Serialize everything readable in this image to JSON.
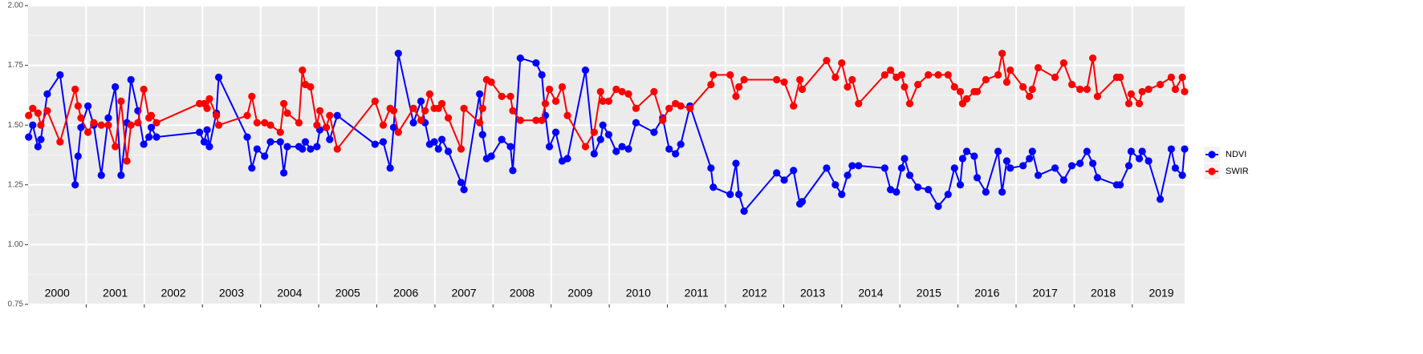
{
  "chart_data": {
    "type": "line",
    "x": [
      2000.01,
      2000.08,
      2000.17,
      2000.22,
      2000.33,
      2000.55,
      2000.81,
      2000.86,
      2000.91,
      2001.03,
      2001.13,
      2001.26,
      2001.38,
      2001.5,
      2001.6,
      2001.7,
      2001.77,
      2001.89,
      2001.99,
      2002.08,
      2002.12,
      2002.21,
      2002.95,
      2003.03,
      2003.08,
      2003.12,
      2003.24,
      2003.28,
      2003.77,
      2003.85,
      2003.94,
      2004.07,
      2004.17,
      2004.34,
      2004.4,
      2004.46,
      2004.66,
      2004.72,
      2004.77,
      2004.86,
      2004.97,
      2005.02,
      2005.13,
      2005.19,
      2005.32,
      2005.97,
      2006.11,
      2006.23,
      2006.29,
      2006.37,
      2006.63,
      2006.76,
      2006.83,
      2006.91,
      2006.99,
      2007.06,
      2007.12,
      2007.23,
      2007.45,
      2007.5,
      2007.77,
      2007.82,
      2007.89,
      2007.97,
      2008.15,
      2008.3,
      2008.34,
      2008.47,
      2008.74,
      2008.84,
      2008.9,
      2008.97,
      2009.08,
      2009.19,
      2009.28,
      2009.59,
      2009.74,
      2009.85,
      2009.89,
      2009.99,
      2010.12,
      2010.22,
      2010.33,
      2010.46,
      2010.77,
      2010.92,
      2011.03,
      2011.14,
      2011.23,
      2011.39,
      2011.75,
      2011.79,
      2012.08,
      2012.18,
      2012.23,
      2012.32,
      2012.88,
      2013.01,
      2013.17,
      2013.28,
      2013.32,
      2013.74,
      2013.89,
      2014.0,
      2014.1,
      2014.18,
      2014.29,
      2014.74,
      2014.84,
      2014.94,
      2015.03,
      2015.08,
      2015.17,
      2015.31,
      2015.49,
      2015.66,
      2015.83,
      2015.94,
      2016.04,
      2016.08,
      2016.15,
      2016.28,
      2016.33,
      2016.48,
      2016.69,
      2016.76,
      2016.84,
      2016.9,
      2017.12,
      2017.23,
      2017.28,
      2017.38,
      2017.67,
      2017.82,
      2017.96,
      2018.1,
      2018.22,
      2018.32,
      2018.4,
      2018.73,
      2018.79,
      2018.94,
      2018.98,
      2019.12,
      2019.17,
      2019.28,
      2019.48,
      2019.67,
      2019.74,
      2019.86,
      2019.9
    ],
    "series": [
      {
        "name": "NDVI",
        "color": "#0000ff",
        "values": [
          1.45,
          1.5,
          1.41,
          1.44,
          1.63,
          1.71,
          1.25,
          1.37,
          1.49,
          1.58,
          1.5,
          1.29,
          1.53,
          1.66,
          1.29,
          1.51,
          1.69,
          1.56,
          1.42,
          1.45,
          1.49,
          1.45,
          1.47,
          1.43,
          1.48,
          1.41,
          1.55,
          1.7,
          1.45,
          1.32,
          1.4,
          1.37,
          1.43,
          1.43,
          1.3,
          1.41,
          1.41,
          1.4,
          1.43,
          1.4,
          1.41,
          1.48,
          1.49,
          1.44,
          1.54,
          1.42,
          1.43,
          1.32,
          1.49,
          1.8,
          1.51,
          1.6,
          1.51,
          1.42,
          1.43,
          1.4,
          1.44,
          1.39,
          1.26,
          1.23,
          1.63,
          1.46,
          1.36,
          1.37,
          1.44,
          1.41,
          1.31,
          1.78,
          1.76,
          1.71,
          1.54,
          1.41,
          1.47,
          1.35,
          1.36,
          1.73,
          1.38,
          1.44,
          1.5,
          1.46,
          1.39,
          1.41,
          1.4,
          1.51,
          1.47,
          1.53,
          1.4,
          1.38,
          1.42,
          1.58,
          1.32,
          1.24,
          1.21,
          1.34,
          1.21,
          1.14,
          1.3,
          1.27,
          1.31,
          1.17,
          1.18,
          1.32,
          1.25,
          1.21,
          1.29,
          1.33,
          1.33,
          1.32,
          1.23,
          1.22,
          1.32,
          1.36,
          1.29,
          1.24,
          1.23,
          1.16,
          1.21,
          1.32,
          1.25,
          1.36,
          1.39,
          1.37,
          1.28,
          1.22,
          1.39,
          1.22,
          1.35,
          1.32,
          1.33,
          1.36,
          1.39,
          1.29,
          1.32,
          1.27,
          1.33,
          1.34,
          1.39,
          1.34,
          1.28,
          1.25,
          1.25,
          1.33,
          1.39,
          1.36,
          1.39,
          1.35,
          1.19,
          1.4,
          1.32,
          1.29,
          1.4
        ]
      },
      {
        "name": "SWIR",
        "color": "#ff0000",
        "values": [
          1.54,
          1.57,
          1.55,
          1.5,
          1.56,
          1.43,
          1.65,
          1.58,
          1.53,
          1.47,
          1.51,
          1.5,
          1.5,
          1.41,
          1.6,
          1.35,
          1.5,
          1.51,
          1.65,
          1.53,
          1.54,
          1.51,
          1.59,
          1.59,
          1.57,
          1.61,
          1.54,
          1.5,
          1.54,
          1.62,
          1.51,
          1.51,
          1.5,
          1.47,
          1.59,
          1.55,
          1.51,
          1.73,
          1.67,
          1.66,
          1.5,
          1.56,
          1.49,
          1.54,
          1.4,
          1.6,
          1.5,
          1.57,
          1.56,
          1.47,
          1.57,
          1.52,
          1.56,
          1.63,
          1.57,
          1.57,
          1.59,
          1.53,
          1.4,
          1.57,
          1.51,
          1.57,
          1.69,
          1.68,
          1.62,
          1.62,
          1.56,
          1.52,
          1.52,
          1.52,
          1.59,
          1.65,
          1.6,
          1.66,
          1.54,
          1.41,
          1.47,
          1.64,
          1.6,
          1.6,
          1.65,
          1.64,
          1.63,
          1.57,
          1.64,
          1.52,
          1.57,
          1.59,
          1.58,
          1.57,
          1.67,
          1.71,
          1.71,
          1.62,
          1.66,
          1.69,
          1.69,
          1.68,
          1.58,
          1.69,
          1.65,
          1.77,
          1.7,
          1.76,
          1.66,
          1.69,
          1.59,
          1.71,
          1.73,
          1.7,
          1.71,
          1.66,
          1.59,
          1.67,
          1.71,
          1.71,
          1.71,
          1.66,
          1.64,
          1.59,
          1.61,
          1.64,
          1.64,
          1.69,
          1.71,
          1.8,
          1.68,
          1.73,
          1.66,
          1.62,
          1.65,
          1.74,
          1.7,
          1.76,
          1.67,
          1.65,
          1.65,
          1.78,
          1.62,
          1.7,
          1.7,
          1.59,
          1.63,
          1.59,
          1.64,
          1.65,
          1.67,
          1.7,
          1.65,
          1.7,
          1.64
        ]
      }
    ],
    "xlim": [
      2000,
      2019.9
    ],
    "xticks": [
      2001,
      2002,
      2003,
      2004,
      2005,
      2006,
      2007,
      2008,
      2009,
      2010,
      2011,
      2012,
      2013,
      2014,
      2015,
      2016,
      2017,
      2018,
      2019
    ],
    "year_labels": [
      {
        "x": 2000.5,
        "label": "2000"
      },
      {
        "x": 2001.5,
        "label": "2001"
      },
      {
        "x": 2002.5,
        "label": "2002"
      },
      {
        "x": 2003.5,
        "label": "2003"
      },
      {
        "x": 2004.5,
        "label": "2004"
      },
      {
        "x": 2005.5,
        "label": "2005"
      },
      {
        "x": 2006.5,
        "label": "2006"
      },
      {
        "x": 2007.5,
        "label": "2007"
      },
      {
        "x": 2008.5,
        "label": "2008"
      },
      {
        "x": 2009.5,
        "label": "2009"
      },
      {
        "x": 2010.5,
        "label": "2010"
      },
      {
        "x": 2011.5,
        "label": "2011"
      },
      {
        "x": 2012.5,
        "label": "2012"
      },
      {
        "x": 2013.5,
        "label": "2013"
      },
      {
        "x": 2014.5,
        "label": "2014"
      },
      {
        "x": 2015.5,
        "label": "2015"
      },
      {
        "x": 2016.5,
        "label": "2016"
      },
      {
        "x": 2017.5,
        "label": "2017"
      },
      {
        "x": 2018.5,
        "label": "2018"
      },
      {
        "x": 2019.5,
        "label": "2019"
      }
    ],
    "ylim": [
      0.75,
      2.0
    ],
    "yticks": [
      0.75,
      {
        "value": 1.0,
        "label": "1.00"
      },
      1.25,
      {
        "value": 1.5,
        "label": "1.50"
      },
      1.75,
      {
        "value": 2.0,
        "label": "2.00"
      }
    ],
    "grid": true,
    "legend": "right"
  }
}
